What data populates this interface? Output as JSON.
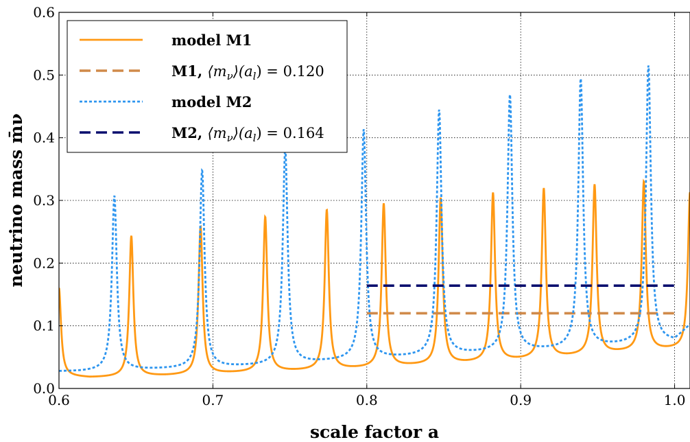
{
  "chart_data": {
    "type": "line",
    "title": "",
    "xlabel": "scale factor a",
    "ylabel": "neutrino mass m̄ν",
    "xlim": [
      0.6,
      1.01
    ],
    "ylim": [
      0.0,
      0.6
    ],
    "x_ticks": [
      0.6,
      0.7,
      0.8,
      0.9,
      1.0
    ],
    "x_tick_labels": [
      "0.6",
      "0.7",
      "0.8",
      "0.9",
      "1.0"
    ],
    "y_ticks": [
      0.0,
      0.1,
      0.2,
      0.3,
      0.4,
      0.5,
      0.6
    ],
    "y_tick_labels": [
      "0.0",
      "0.1",
      "0.2",
      "0.3",
      "0.4",
      "0.5",
      "0.6"
    ],
    "grid": true,
    "legend_position": "top-left",
    "series": [
      {
        "name": "model M1",
        "style": "solid",
        "color": "#ff9914",
        "baseline": {
          "x": [
            0.6,
            0.62,
            0.67,
            0.71,
            0.76,
            0.8,
            0.83,
            0.865,
            0.9,
            0.93,
            0.965,
            1.0
          ],
          "y": [
            0.02,
            0.017,
            0.02,
            0.024,
            0.028,
            0.032,
            0.036,
            0.04,
            0.045,
            0.05,
            0.057,
            0.062
          ]
        },
        "peaks": [
          {
            "x": 0.6,
            "y": 0.16
          },
          {
            "x": 0.647,
            "y": 0.243
          },
          {
            "x": 0.692,
            "y": 0.258
          },
          {
            "x": 0.734,
            "y": 0.273
          },
          {
            "x": 0.774,
            "y": 0.284
          },
          {
            "x": 0.811,
            "y": 0.294
          },
          {
            "x": 0.848,
            "y": 0.303
          },
          {
            "x": 0.882,
            "y": 0.311
          },
          {
            "x": 0.915,
            "y": 0.318
          },
          {
            "x": 0.948,
            "y": 0.324
          },
          {
            "x": 0.98,
            "y": 0.329
          },
          {
            "x": 1.01,
            "y": 0.312
          }
        ]
      },
      {
        "name": "M1, ⟨mν⟩(al) = 0.120",
        "label_bold": "M1, ",
        "label_math": "⟨m",
        "label_sub": "ν",
        "label_rest": "⟩(a",
        "label_sub2": "l",
        "label_end": ") = ",
        "label_value": "0.120",
        "style": "dashed",
        "color": "#d08a4a",
        "x": [
          0.8,
          1.0
        ],
        "y": [
          0.12,
          0.12
        ]
      },
      {
        "name": "model M2",
        "style": "dotted",
        "color": "#2d95ef",
        "baseline": {
          "x": [
            0.6,
            0.615,
            0.66,
            0.7,
            0.73,
            0.77,
            0.79,
            0.83,
            0.86,
            0.89,
            0.925,
            0.96,
            1.0,
            1.01
          ],
          "y": [
            0.027,
            0.027,
            0.03,
            0.033,
            0.036,
            0.042,
            0.045,
            0.05,
            0.054,
            0.058,
            0.062,
            0.068,
            0.075,
            0.1
          ]
        },
        "peaks": [
          {
            "x": 0.636,
            "y": 0.307
          },
          {
            "x": 0.693,
            "y": 0.347
          },
          {
            "x": 0.747,
            "y": 0.381
          },
          {
            "x": 0.798,
            "y": 0.412
          },
          {
            "x": 0.847,
            "y": 0.443
          },
          {
            "x": 0.893,
            "y": 0.467
          },
          {
            "x": 0.939,
            "y": 0.493
          },
          {
            "x": 0.983,
            "y": 0.514
          }
        ]
      },
      {
        "name": "M2, ⟨mν⟩(al) = 0.164",
        "label_bold": "M2, ",
        "label_math": "⟨m",
        "label_sub": "ν",
        "label_rest": "⟩(a",
        "label_sub2": "l",
        "label_end": ") = ",
        "label_value": "0.164",
        "style": "dashed",
        "color": "#0b0f6e",
        "x": [
          0.8,
          1.0
        ],
        "y": [
          0.164,
          0.164
        ]
      }
    ]
  }
}
